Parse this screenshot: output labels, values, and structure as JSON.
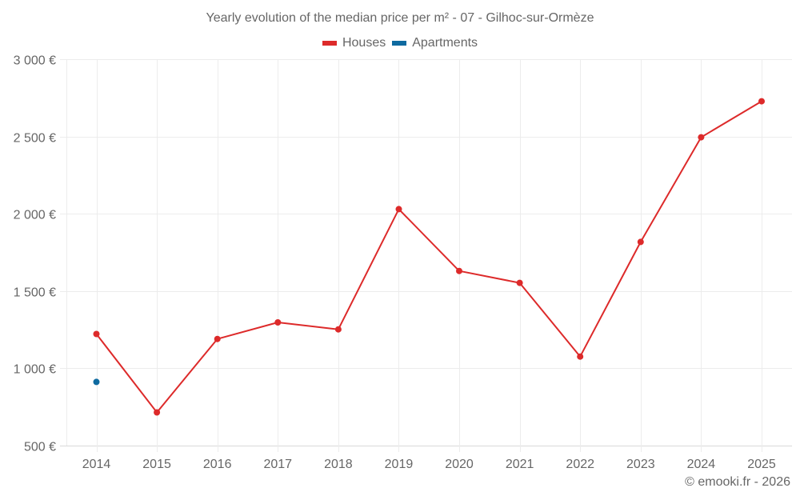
{
  "title": "Yearly evolution of the median price per m² - 07 - Gilhoc-sur-Ormèze",
  "legend": [
    {
      "label": "Houses",
      "color": "#dd2a2a"
    },
    {
      "label": "Apartments",
      "color": "#0e6aa0"
    }
  ],
  "credit": "© emooki.fr - 2026",
  "chart_data": {
    "type": "line",
    "title": "Yearly evolution of the median price per m² - 07 - Gilhoc-sur-Ormèze",
    "xlabel": "",
    "ylabel": "",
    "categories": [
      "2014",
      "2015",
      "2016",
      "2017",
      "2018",
      "2019",
      "2020",
      "2021",
      "2022",
      "2023",
      "2024",
      "2025"
    ],
    "series": [
      {
        "name": "Houses",
        "color": "#dd2a2a",
        "values": [
          1222,
          715,
          1190,
          1297,
          1252,
          2030,
          1630,
          1553,
          1076,
          1818,
          2495,
          2728
        ]
      },
      {
        "name": "Apartments",
        "color": "#0e6aa0",
        "values": [
          912,
          null,
          null,
          null,
          null,
          null,
          null,
          null,
          null,
          null,
          null,
          null
        ]
      }
    ],
    "ylim": [
      500,
      3000
    ],
    "yticks": [
      500,
      1000,
      1500,
      2000,
      2500,
      3000
    ],
    "ytick_labels": [
      "500 €",
      "1 000 €",
      "1 500 €",
      "2 000 €",
      "2 500 €",
      "3 000 €"
    ],
    "grid": true,
    "legend_position": "top"
  }
}
